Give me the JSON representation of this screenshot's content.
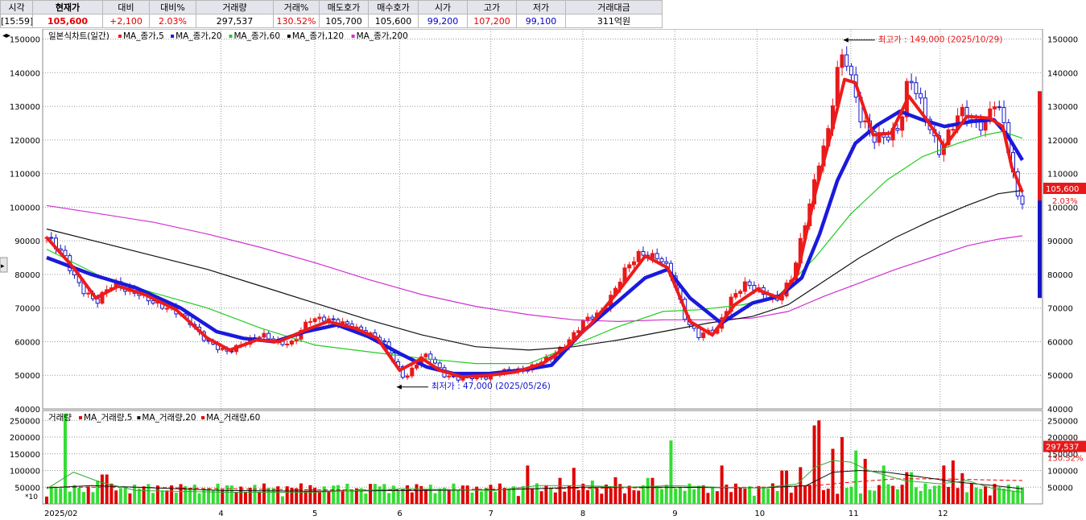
{
  "quote_table": {
    "headers": [
      "시각",
      "현재가",
      "대비",
      "대비%",
      "거래량",
      "거래%",
      "매도호가",
      "매수호가",
      "시가",
      "고가",
      "저가",
      "거래대금"
    ],
    "values": [
      "[15:59]",
      "105,600",
      "+2,100",
      "2.03%",
      "297,537",
      "130.52%",
      "105,700",
      "105,600",
      "99,200",
      "107,200",
      "99,100",
      "311억원"
    ]
  },
  "nav_arrows": "◂▸",
  "side_arrow": "▸",
  "colors": {
    "up": "#e8191b",
    "down": "#1515c8",
    "ma5": "#ee1b1b",
    "ma20": "#1a1adc",
    "ma60": "#22cc22",
    "ma120": "#111111",
    "ma200": "#d030d0",
    "vol_up": "#e00000",
    "vol_down": "#33dd33"
  },
  "chart_data": [
    {
      "type": "candlestick",
      "title": "일본식차트(일간)",
      "legend": [
        {
          "name": "MA_종가,5",
          "color": "#ee1b1b"
        },
        {
          "name": "MA_종가,20",
          "color": "#1a1adc"
        },
        {
          "name": "MA_종가,60",
          "color": "#22cc22"
        },
        {
          "name": "MA_종가,120",
          "color": "#111111"
        },
        {
          "name": "MA_종가,200",
          "color": "#d030d0"
        }
      ],
      "y_ticks": [
        "40000",
        "50000",
        "60000",
        "70000",
        "80000",
        "90000",
        "100000",
        "110000",
        "120000",
        "130000",
        "140000",
        "150000"
      ],
      "y_tick_values": [
        40000,
        50000,
        60000,
        70000,
        80000,
        90000,
        100000,
        110000,
        120000,
        130000,
        140000,
        150000
      ],
      "ylim": [
        40000,
        153000
      ],
      "x_labels": [
        {
          "label": "2025/02",
          "month": 0
        },
        {
          "label": "4",
          "month": 1.95
        },
        {
          "label": "5",
          "month": 3.0
        },
        {
          "label": "6",
          "month": 3.95
        },
        {
          "label": "7",
          "month": 4.97
        },
        {
          "label": "8",
          "month": 6.0
        },
        {
          "label": "9",
          "month": 7.03
        },
        {
          "label": "10",
          "month": 7.95
        },
        {
          "label": "11",
          "month": 9.0
        },
        {
          "label": "12",
          "month": 10.0
        }
      ],
      "x_range_months": [
        0,
        10.92
      ],
      "close_path": [
        [
          0.0,
          91000
        ],
        [
          0.2,
          85000
        ],
        [
          0.4,
          76000
        ],
        [
          0.55,
          71000
        ],
        [
          0.75,
          78000
        ],
        [
          1.0,
          74000
        ],
        [
          1.3,
          71000
        ],
        [
          1.6,
          66000
        ],
        [
          1.85,
          59000
        ],
        [
          2.0,
          56500
        ],
        [
          2.2,
          60000
        ],
        [
          2.4,
          61500
        ],
        [
          2.55,
          60500
        ],
        [
          2.75,
          59500
        ],
        [
          2.95,
          66500
        ],
        [
          3.1,
          67500
        ],
        [
          3.3,
          65000
        ],
        [
          3.55,
          63500
        ],
        [
          3.75,
          60000
        ],
        [
          3.9,
          53500
        ],
        [
          4.0,
          49500
        ],
        [
          4.1,
          52000
        ],
        [
          4.2,
          55500
        ],
        [
          4.3,
          55000
        ],
        [
          4.45,
          50500
        ],
        [
          4.6,
          49000
        ],
        [
          4.85,
          49500
        ],
        [
          5.05,
          50500
        ],
        [
          5.3,
          51500
        ],
        [
          5.5,
          53500
        ],
        [
          5.65,
          55000
        ],
        [
          5.85,
          61000
        ],
        [
          6.0,
          65500
        ],
        [
          6.2,
          68500
        ],
        [
          6.45,
          80000
        ],
        [
          6.65,
          86500
        ],
        [
          6.85,
          85500
        ],
        [
          7.0,
          79000
        ],
        [
          7.15,
          67000
        ],
        [
          7.3,
          62000
        ],
        [
          7.5,
          63000
        ],
        [
          7.65,
          73000
        ],
        [
          7.8,
          77000
        ],
        [
          8.0,
          74500
        ],
        [
          8.2,
          73000
        ],
        [
          8.35,
          79000
        ],
        [
          8.5,
          97000
        ],
        [
          8.65,
          115000
        ],
        [
          8.75,
          122000
        ],
        [
          8.85,
          140000
        ],
        [
          8.93,
          146000
        ],
        [
          9.0,
          140000
        ],
        [
          9.1,
          128000
        ],
        [
          9.25,
          119500
        ],
        [
          9.4,
          121000
        ],
        [
          9.55,
          125000
        ],
        [
          9.65,
          139000
        ],
        [
          9.75,
          132000
        ],
        [
          9.9,
          123000
        ],
        [
          10.0,
          117000
        ],
        [
          10.1,
          122000
        ],
        [
          10.25,
          128000
        ],
        [
          10.35,
          126000
        ],
        [
          10.5,
          125000
        ],
        [
          10.6,
          131000
        ],
        [
          10.72,
          124000
        ],
        [
          10.85,
          105000
        ],
        [
          10.92,
          102500
        ]
      ],
      "ma5_path": [
        [
          0.0,
          91000
        ],
        [
          0.3,
          82000
        ],
        [
          0.55,
          73000
        ],
        [
          0.8,
          76500
        ],
        [
          1.1,
          74000
        ],
        [
          1.45,
          69500
        ],
        [
          1.8,
          61000
        ],
        [
          2.05,
          57500
        ],
        [
          2.35,
          60500
        ],
        [
          2.6,
          60000
        ],
        [
          2.9,
          63500
        ],
        [
          3.15,
          66000
        ],
        [
          3.45,
          64000
        ],
        [
          3.7,
          61000
        ],
        [
          3.95,
          51500
        ],
        [
          4.2,
          55000
        ],
        [
          4.4,
          51500
        ],
        [
          4.65,
          49500
        ],
        [
          4.95,
          50000
        ],
        [
          5.25,
          51000
        ],
        [
          5.55,
          53500
        ],
        [
          5.85,
          59000
        ],
        [
          6.1,
          65500
        ],
        [
          6.4,
          75000
        ],
        [
          6.7,
          85500
        ],
        [
          6.95,
          82000
        ],
        [
          7.2,
          66000
        ],
        [
          7.45,
          62000
        ],
        [
          7.7,
          71000
        ],
        [
          7.95,
          75500
        ],
        [
          8.2,
          73000
        ],
        [
          8.4,
          80000
        ],
        [
          8.6,
          104000
        ],
        [
          8.8,
          124000
        ],
        [
          8.93,
          138000
        ],
        [
          9.05,
          137000
        ],
        [
          9.25,
          121500
        ],
        [
          9.45,
          122000
        ],
        [
          9.65,
          133000
        ],
        [
          9.85,
          126000
        ],
        [
          10.05,
          118000
        ],
        [
          10.3,
          127000
        ],
        [
          10.55,
          126500
        ],
        [
          10.7,
          124000
        ],
        [
          10.8,
          112000
        ],
        [
          10.92,
          104500
        ]
      ],
      "ma20_path": [
        [
          0.0,
          85000
        ],
        [
          0.5,
          80000
        ],
        [
          1.0,
          76000
        ],
        [
          1.5,
          70000
        ],
        [
          1.9,
          63000
        ],
        [
          2.2,
          61000
        ],
        [
          2.55,
          60000
        ],
        [
          2.9,
          63000
        ],
        [
          3.25,
          65000
        ],
        [
          3.6,
          61500
        ],
        [
          3.95,
          56500
        ],
        [
          4.25,
          52500
        ],
        [
          4.55,
          50500
        ],
        [
          4.95,
          50500
        ],
        [
          5.3,
          51500
        ],
        [
          5.65,
          53000
        ],
        [
          6.0,
          63000
        ],
        [
          6.35,
          71000
        ],
        [
          6.7,
          79000
        ],
        [
          6.95,
          81500
        ],
        [
          7.2,
          73000
        ],
        [
          7.55,
          65500
        ],
        [
          7.9,
          71500
        ],
        [
          8.2,
          73500
        ],
        [
          8.45,
          79000
        ],
        [
          8.65,
          92000
        ],
        [
          8.85,
          108000
        ],
        [
          9.05,
          119000
        ],
        [
          9.3,
          124500
        ],
        [
          9.55,
          128500
        ],
        [
          9.8,
          126000
        ],
        [
          10.05,
          124000
        ],
        [
          10.35,
          125500
        ],
        [
          10.6,
          126000
        ],
        [
          10.75,
          121500
        ],
        [
          10.92,
          114000
        ]
      ],
      "ma60_path": [
        [
          0.0,
          87500
        ],
        [
          0.6,
          79500
        ],
        [
          1.2,
          74500
        ],
        [
          1.8,
          70000
        ],
        [
          2.4,
          64000
        ],
        [
          3.0,
          59000
        ],
        [
          3.6,
          57000
        ],
        [
          4.2,
          55000
        ],
        [
          4.8,
          53500
        ],
        [
          5.4,
          53500
        ],
        [
          5.9,
          59000
        ],
        [
          6.4,
          64500
        ],
        [
          6.9,
          69000
        ],
        [
          7.3,
          69500
        ],
        [
          7.8,
          71000
        ],
        [
          8.2,
          74000
        ],
        [
          8.6,
          85000
        ],
        [
          9.0,
          98000
        ],
        [
          9.4,
          108000
        ],
        [
          9.8,
          115000
        ],
        [
          10.2,
          119000
        ],
        [
          10.5,
          121500
        ],
        [
          10.7,
          122500
        ],
        [
          10.92,
          120500
        ]
      ],
      "ma120_path": [
        [
          0.0,
          93500
        ],
        [
          0.6,
          89500
        ],
        [
          1.2,
          85500
        ],
        [
          1.8,
          81500
        ],
        [
          2.4,
          76500
        ],
        [
          3.0,
          71500
        ],
        [
          3.6,
          66500
        ],
        [
          4.2,
          62000
        ],
        [
          4.8,
          58500
        ],
        [
          5.4,
          57500
        ],
        [
          5.9,
          58500
        ],
        [
          6.4,
          60500
        ],
        [
          6.9,
          63000
        ],
        [
          7.4,
          65500
        ],
        [
          7.9,
          67500
        ],
        [
          8.3,
          71000
        ],
        [
          8.7,
          78000
        ],
        [
          9.1,
          85000
        ],
        [
          9.5,
          91000
        ],
        [
          9.9,
          96000
        ],
        [
          10.3,
          100500
        ],
        [
          10.65,
          104000
        ],
        [
          10.92,
          105000
        ]
      ],
      "ma200_path": [
        [
          0.0,
          100500
        ],
        [
          0.6,
          98000
        ],
        [
          1.2,
          95500
        ],
        [
          1.8,
          92000
        ],
        [
          2.4,
          88000
        ],
        [
          3.0,
          83500
        ],
        [
          3.6,
          78500
        ],
        [
          4.2,
          74000
        ],
        [
          4.8,
          70500
        ],
        [
          5.4,
          68000
        ],
        [
          5.9,
          66500
        ],
        [
          6.4,
          66000
        ],
        [
          6.9,
          66500
        ],
        [
          7.4,
          66500
        ],
        [
          7.9,
          67000
        ],
        [
          8.3,
          69000
        ],
        [
          8.7,
          73500
        ],
        [
          9.1,
          77500
        ],
        [
          9.5,
          81500
        ],
        [
          9.9,
          85000
        ],
        [
          10.3,
          88500
        ],
        [
          10.65,
          90500
        ],
        [
          10.92,
          91500
        ]
      ],
      "annotations": [
        {
          "text": "최고가 : 149,000 (2025/10/29)",
          "month": 8.9,
          "value": 149000,
          "kind": "high"
        },
        {
          "text": "최저가 : 47,000 (2025/05/26)",
          "month": 3.9,
          "value": 47000,
          "kind": "low"
        }
      ],
      "price_tag": {
        "value": 105600,
        "label": "105,600",
        "pct": "2.03%"
      }
    },
    {
      "type": "bar",
      "title": "거래량",
      "legend": [
        {
          "name": "MA_거래량,5",
          "color": "#e00000"
        },
        {
          "name": "MA_거래량,20",
          "color": "#111111"
        },
        {
          "name": "MA_거래량,60",
          "color": "#e00000"
        }
      ],
      "y_ticks": [
        "50000",
        "100000",
        "150000",
        "200000",
        "250000"
      ],
      "y_tick_values": [
        50000,
        100000,
        150000,
        200000,
        250000
      ],
      "ylim": [
        0,
        270000
      ],
      "unit_label": "*10",
      "last_volume_tag": {
        "value": 297537,
        "label": "297,537",
        "pct": "130.52%"
      },
      "spikes": [
        [
          0.22,
          270000
        ],
        [
          0.55,
          70000
        ],
        [
          0.65,
          88000
        ],
        [
          3.65,
          60000
        ],
        [
          5.4,
          115000
        ],
        [
          5.75,
          78000
        ],
        [
          5.9,
          108000
        ],
        [
          6.1,
          70000
        ],
        [
          6.35,
          80000
        ],
        [
          6.75,
          78000
        ],
        [
          7.0,
          190000
        ],
        [
          7.55,
          115000
        ],
        [
          8.25,
          100000
        ],
        [
          8.45,
          110000
        ],
        [
          8.6,
          235000
        ],
        [
          8.65,
          250000
        ],
        [
          8.8,
          165000
        ],
        [
          8.9,
          200000
        ],
        [
          9.05,
          160000
        ],
        [
          9.15,
          135000
        ],
        [
          9.35,
          115000
        ],
        [
          9.65,
          95000
        ],
        [
          10.05,
          115000
        ],
        [
          10.15,
          130000
        ],
        [
          10.25,
          92000
        ],
        [
          10.62,
          60000
        ],
        [
          10.75,
          58000
        ]
      ],
      "ma5_path": [
        [
          0.0,
          45000
        ],
        [
          0.3,
          95000
        ],
        [
          0.6,
          65000
        ],
        [
          1.0,
          40000
        ],
        [
          2.0,
          35000
        ],
        [
          3.0,
          35000
        ],
        [
          4.0,
          45000
        ],
        [
          5.0,
          40000
        ],
        [
          5.5,
          55000
        ],
        [
          6.0,
          55000
        ],
        [
          6.5,
          50000
        ],
        [
          7.0,
          55000
        ],
        [
          7.5,
          50000
        ],
        [
          8.0,
          48000
        ],
        [
          8.4,
          60000
        ],
        [
          8.6,
          110000
        ],
        [
          8.8,
          130000
        ],
        [
          9.0,
          125000
        ],
        [
          9.2,
          100000
        ],
        [
          9.6,
          70000
        ],
        [
          10.0,
          60000
        ],
        [
          10.3,
          70000
        ],
        [
          10.6,
          45000
        ],
        [
          10.92,
          35000
        ]
      ],
      "ma20_path": [
        [
          0.0,
          48000
        ],
        [
          0.5,
          55000
        ],
        [
          1.0,
          50000
        ],
        [
          2.0,
          40000
        ],
        [
          3.0,
          38000
        ],
        [
          4.0,
          40000
        ],
        [
          5.0,
          42000
        ],
        [
          6.0,
          50000
        ],
        [
          7.0,
          50000
        ],
        [
          8.0,
          48000
        ],
        [
          8.5,
          55000
        ],
        [
          8.8,
          95000
        ],
        [
          9.1,
          100000
        ],
        [
          9.4,
          95000
        ],
        [
          9.8,
          80000
        ],
        [
          10.2,
          65000
        ],
        [
          10.6,
          55000
        ],
        [
          10.92,
          45000
        ]
      ],
      "ma60_path": [
        [
          0.0,
          50000
        ],
        [
          1.0,
          50000
        ],
        [
          2.0,
          45000
        ],
        [
          3.0,
          42000
        ],
        [
          4.0,
          42000
        ],
        [
          5.0,
          44000
        ],
        [
          6.0,
          47000
        ],
        [
          7.0,
          49000
        ],
        [
          8.0,
          50000
        ],
        [
          8.6,
          55000
        ],
        [
          9.0,
          65000
        ],
        [
          9.5,
          75000
        ],
        [
          10.0,
          75000
        ],
        [
          10.5,
          72000
        ],
        [
          10.92,
          70000
        ]
      ]
    }
  ]
}
